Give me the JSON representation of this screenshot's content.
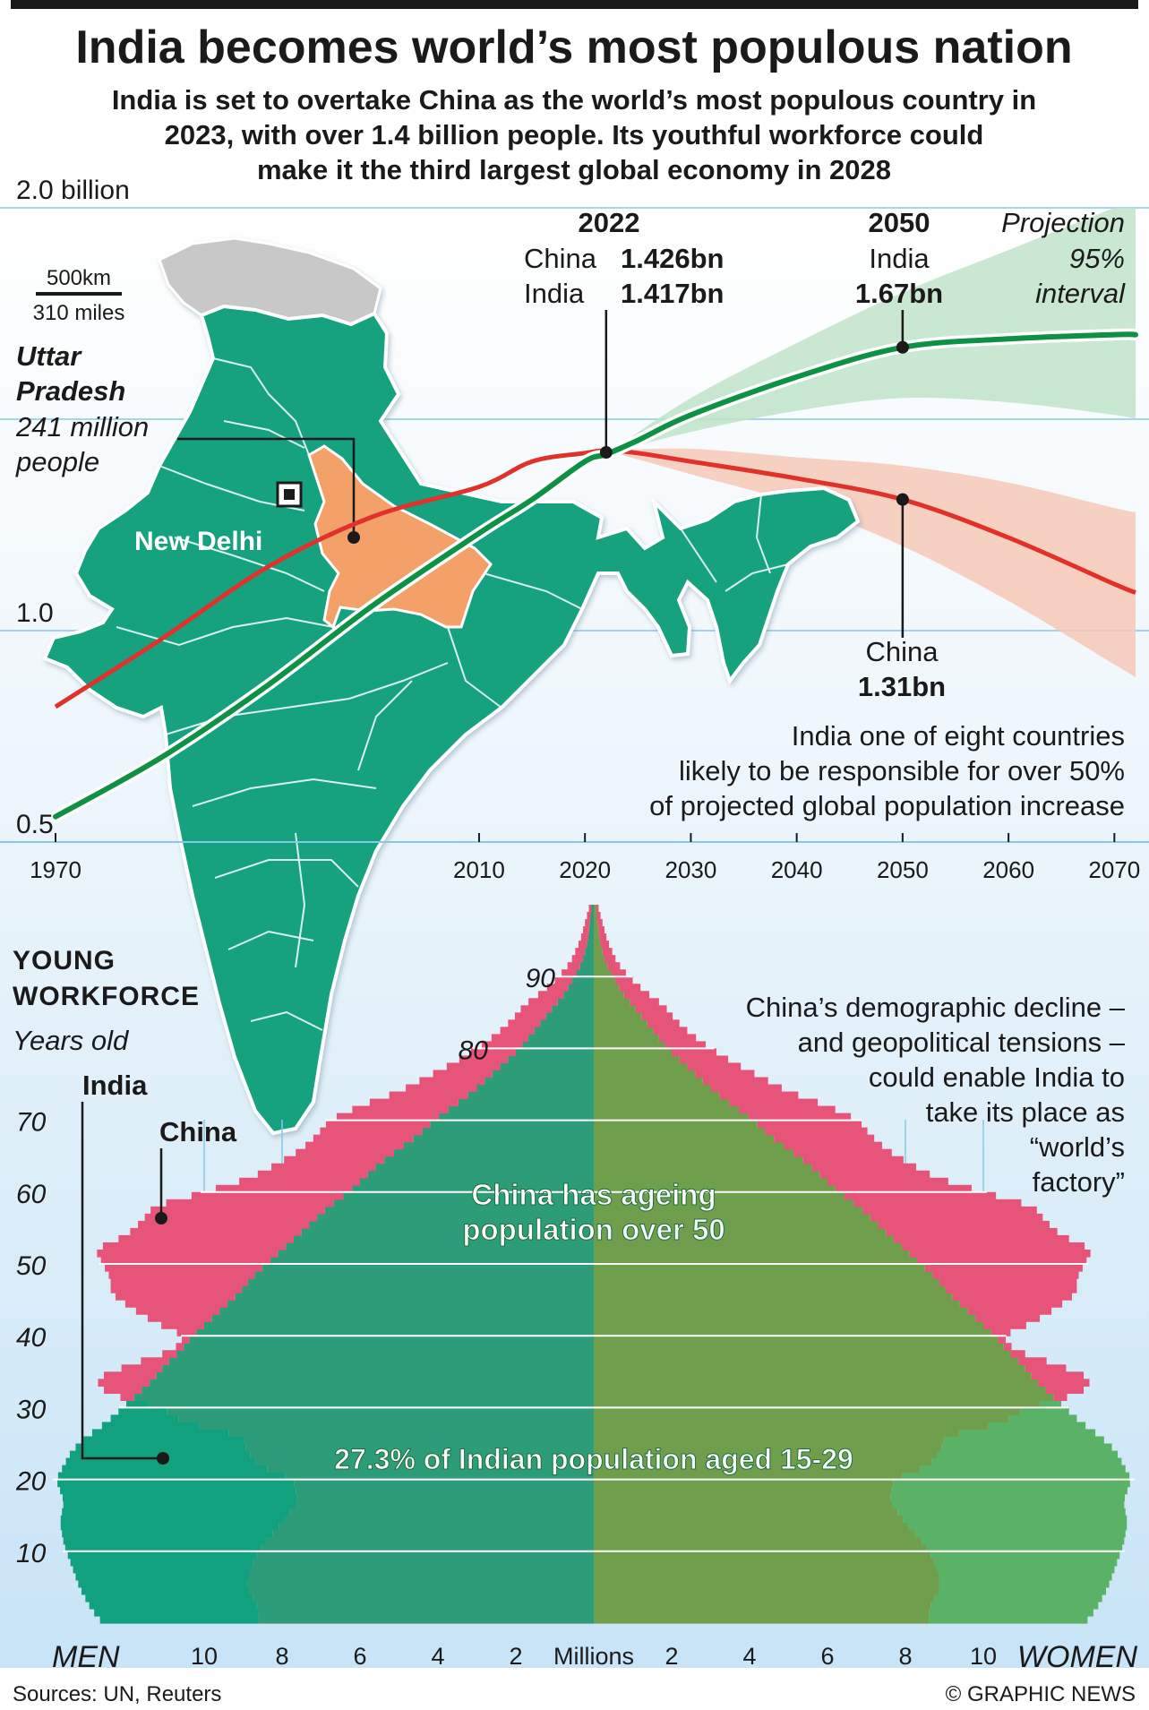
{
  "header": {
    "title": "India becomes world’s most populous nation",
    "subtitle_lines": [
      "India is set to overtake China as the world’s most populous country in",
      "2023, with over 1.4 billion people. Its youthful workforce could",
      "make it the third largest global economy in 2028"
    ]
  },
  "map": {
    "scale_km": "500km",
    "scale_miles": "310 miles",
    "state_name_lines": [
      "Uttar",
      "Pradesh"
    ],
    "state_pop_lines": [
      "241 million",
      "people"
    ],
    "capital": "New Delhi",
    "colors": {
      "land": "#12a17f",
      "highlight": "#f3a069",
      "disputed": "#c8c8c8"
    }
  },
  "chart_data": [
    {
      "type": "line",
      "x": [
        1970,
        1980,
        1990,
        2000,
        2010,
        2015,
        2020,
        2022,
        2025,
        2030,
        2040,
        2050,
        2060,
        2070,
        2072
      ],
      "series": [
        {
          "name": "China",
          "color": "#e0312b",
          "values": [
            0.82,
            0.98,
            1.15,
            1.27,
            1.34,
            1.4,
            1.42,
            1.426,
            1.42,
            1.4,
            1.36,
            1.31,
            1.22,
            1.11,
            1.09
          ]
        },
        {
          "name": "India",
          "color": "#0f9145",
          "values": [
            0.56,
            0.7,
            0.87,
            1.06,
            1.23,
            1.31,
            1.4,
            1.417,
            1.45,
            1.51,
            1.6,
            1.67,
            1.69,
            1.7,
            1.7
          ]
        }
      ],
      "projection_band": {
        "from_year": 2022,
        "x": [
          2022,
          2030,
          2040,
          2050,
          2060,
          2070,
          2072
        ],
        "India": {
          "color": "#bfe3c9",
          "low": [
            1.417,
            1.47,
            1.52,
            1.55,
            1.54,
            1.51,
            1.5
          ],
          "high": [
            1.417,
            1.55,
            1.68,
            1.8,
            1.9,
            2.0,
            2.02
          ]
        },
        "China": {
          "color": "#f6c8b6",
          "low": [
            1.426,
            1.37,
            1.3,
            1.2,
            1.07,
            0.92,
            0.89
          ],
          "high": [
            1.426,
            1.43,
            1.41,
            1.39,
            1.35,
            1.29,
            1.28
          ]
        }
      },
      "ylim": [
        0.5,
        2.0
      ],
      "xlim": [
        1970,
        2072
      ],
      "y_tick_values": [
        0.5,
        1.0,
        1.5,
        2.0
      ],
      "y_tick_labels": [
        {
          "v": 2.0,
          "label": "2.0 billion"
        },
        {
          "v": 1.0,
          "label": "1.0"
        },
        {
          "v": 0.5,
          "label": "0.5"
        }
      ],
      "x_tick_labels": [
        "1970",
        "2010",
        "2020",
        "2030",
        "2040",
        "2050",
        "2060",
        "2070"
      ],
      "x_tick_values": [
        1970,
        2010,
        2020,
        2030,
        2040,
        2050,
        2060,
        2070
      ],
      "callouts": {
        "y2022": {
          "year": "2022",
          "china_label": "China",
          "china_value": "1.426bn",
          "india_label": "India",
          "india_value": "1.417bn"
        },
        "y2050_india": {
          "year": "2050",
          "label": "India",
          "value": "1.67bn"
        },
        "y2050_china": {
          "label": "China",
          "value": "1.31bn"
        },
        "projection_lines": [
          "Projection",
          "95%",
          "interval"
        ],
        "note_lines": [
          "India one of eight countries",
          "likely to be responsible for over 50%",
          "of projected global population increase"
        ]
      }
    },
    {
      "type": "bar",
      "orientation": "horizontal",
      "title_lines": [
        "YOUNG",
        "WORKFORCE"
      ],
      "ylabel": "Years old",
      "xlabel": "Millions",
      "left_label": "MEN",
      "right_label": "WOMEN",
      "x_tick_labels": [
        "10",
        "8",
        "6",
        "4",
        "2",
        "Millions",
        "2",
        "4",
        "6",
        "8",
        "10"
      ],
      "x_tick_values": [
        -10,
        -8,
        -6,
        -4,
        -2,
        0,
        2,
        4,
        6,
        8,
        10
      ],
      "xlim": [
        -13.8,
        13.8
      ],
      "y_tick_labels": [
        "10",
        "20",
        "30",
        "40",
        "50",
        "60",
        "70",
        "80",
        "90"
      ],
      "y_tick_values": [
        10,
        20,
        30,
        40,
        50,
        60,
        70,
        80,
        90
      ],
      "y_tick_italic_labels": [
        "80",
        "90"
      ],
      "ylim": [
        0,
        101
      ],
      "series": [
        {
          "name": "China",
          "color": "#e6547a",
          "ages": [
            0,
            2,
            5,
            8,
            11,
            14,
            17,
            20,
            22,
            24,
            26,
            28,
            30,
            32,
            34,
            36,
            38,
            40,
            42,
            44,
            46,
            48,
            50,
            52,
            54,
            56,
            58,
            60,
            62,
            64,
            66,
            68,
            70,
            72,
            74,
            76,
            78,
            80,
            82,
            84,
            86,
            88,
            90,
            92,
            95,
            100
          ],
          "values": [
            8.6,
            8.6,
            8.9,
            8.8,
            8.5,
            8.0,
            7.6,
            7.7,
            8.6,
            8.9,
            9.0,
            10.5,
            11.1,
            12.5,
            12.8,
            11.9,
            10.8,
            10.5,
            11.3,
            11.9,
            12.4,
            12.4,
            12.6,
            12.8,
            12.0,
            11.6,
            11.3,
            10.0,
            8.8,
            8.1,
            7.5,
            7.1,
            6.8,
            6.0,
            5.0,
            4.3,
            3.6,
            3.0,
            2.5,
            2.1,
            1.8,
            1.3,
            0.9,
            0.6,
            0.35,
            0.1
          ]
        },
        {
          "name": "India",
          "color": "#12a17f",
          "color_right": "#5ab266",
          "ages": [
            0,
            2,
            5,
            8,
            11,
            14,
            17,
            20,
            22,
            24,
            26,
            28,
            30,
            32,
            34,
            36,
            38,
            40,
            42,
            44,
            46,
            48,
            50,
            52,
            54,
            56,
            58,
            60,
            62,
            64,
            66,
            68,
            70,
            72,
            74,
            76,
            78,
            80,
            82,
            84,
            86,
            88,
            90,
            92,
            95,
            100
          ],
          "values": [
            12.6,
            12.9,
            13.2,
            13.4,
            13.6,
            13.7,
            13.6,
            13.8,
            13.6,
            13.4,
            13.0,
            12.5,
            12.1,
            11.7,
            11.3,
            11.0,
            10.6,
            10.3,
            9.9,
            9.5,
            9.1,
            8.8,
            8.4,
            8.0,
            7.6,
            7.2,
            6.8,
            6.3,
            5.9,
            5.5,
            5.0,
            4.5,
            4.1,
            3.6,
            3.1,
            2.7,
            2.3,
            1.9,
            1.6,
            1.3,
            1.0,
            0.7,
            0.5,
            0.3,
            0.15,
            0.05
          ]
        }
      ],
      "overlap_color_left": "#2d9c78",
      "overlap_color_right": "#6f9f4d",
      "annotations": {
        "india_series_label": "India",
        "china_series_label": "China",
        "ageing_lines": [
          "China has ageing",
          "population over 50"
        ],
        "young_share": "27.3% of Indian population aged 15-29",
        "factory_lines": [
          "China’s demographic decline –",
          "and geopolitical tensions –",
          "could enable India to",
          "take its place as",
          "“world’s",
          "factory”"
        ]
      }
    }
  ],
  "footer": {
    "sources": "Sources: UN, Reuters",
    "credit": "© GRAPHIC NEWS"
  }
}
